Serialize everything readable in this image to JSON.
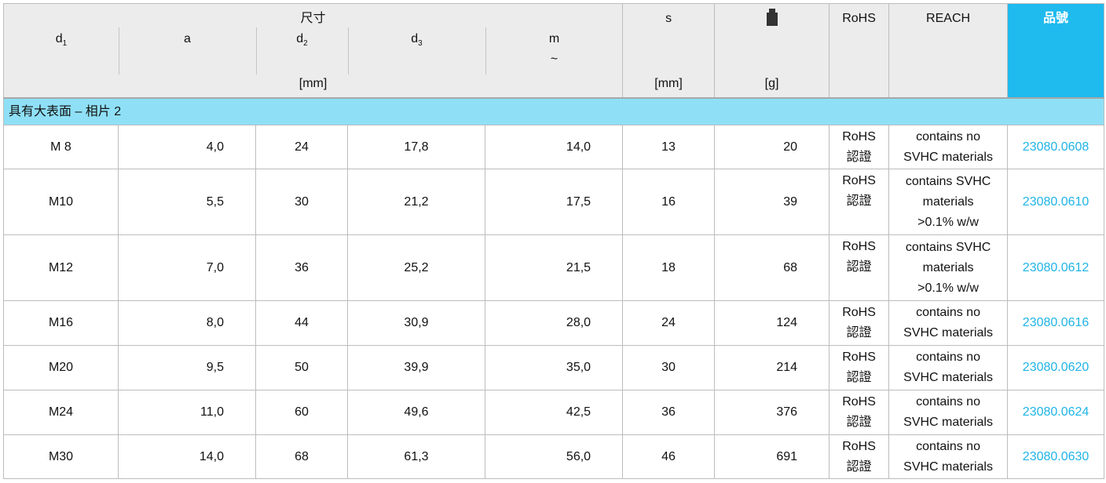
{
  "header": {
    "dimensions_label": "尺寸",
    "dimensions_unit": "[mm]",
    "d1": "d",
    "d1_sub": "1",
    "a": "a",
    "d2": "d",
    "d2_sub": "2",
    "d3": "d",
    "d3_sub": "3",
    "m": "m",
    "m_approx": "~",
    "s": "s",
    "s_unit": "[mm]",
    "weight_icon": "weight-icon",
    "weight_unit": "[g]",
    "rohs": "RoHS",
    "reach": "REACH",
    "part_no": "品號"
  },
  "colors": {
    "header_bg": "#ececec",
    "group_bg": "#8fe0f6",
    "part_no_header": "#1fbaee",
    "part_no_link": "#1fb4e6"
  },
  "group": "具有大表面 – 相片 2",
  "rows": [
    {
      "d1": "M 8",
      "a": "4,0",
      "d2": "24",
      "d3": "17,8",
      "m": "14,0",
      "s": "13",
      "g": "20",
      "rohs1": "RoHS",
      "rohs2": "認證",
      "reach": [
        "contains no",
        "SVHC materials"
      ],
      "part": "23080.0608"
    },
    {
      "d1": "M10",
      "a": "5,5",
      "d2": "30",
      "d3": "21,2",
      "m": "17,5",
      "s": "16",
      "g": "39",
      "rohs1": "RoHS",
      "rohs2": "認證",
      "reach": [
        "contains SVHC",
        "materials",
        ">0.1% w/w"
      ],
      "part": "23080.0610"
    },
    {
      "d1": "M12",
      "a": "7,0",
      "d2": "36",
      "d3": "25,2",
      "m": "21,5",
      "s": "18",
      "g": "68",
      "rohs1": "RoHS",
      "rohs2": "認證",
      "reach": [
        "contains SVHC",
        "materials",
        ">0.1% w/w"
      ],
      "part": "23080.0612"
    },
    {
      "d1": "M16",
      "a": "8,0",
      "d2": "44",
      "d3": "30,9",
      "m": "28,0",
      "s": "24",
      "g": "124",
      "rohs1": "RoHS",
      "rohs2": "認證",
      "reach": [
        "contains no",
        "SVHC materials"
      ],
      "part": "23080.0616"
    },
    {
      "d1": "M20",
      "a": "9,5",
      "d2": "50",
      "d3": "39,9",
      "m": "35,0",
      "s": "30",
      "g": "214",
      "rohs1": "RoHS",
      "rohs2": "認證",
      "reach": [
        "contains no",
        "SVHC materials"
      ],
      "part": "23080.0620"
    },
    {
      "d1": "M24",
      "a": "11,0",
      "d2": "60",
      "d3": "49,6",
      "m": "42,5",
      "s": "36",
      "g": "376",
      "rohs1": "RoHS",
      "rohs2": "認證",
      "reach": [
        "contains no",
        "SVHC materials"
      ],
      "part": "23080.0624"
    },
    {
      "d1": "M30",
      "a": "14,0",
      "d2": "68",
      "d3": "61,3",
      "m": "56,0",
      "s": "46",
      "g": "691",
      "rohs1": "RoHS",
      "rohs2": "認證",
      "reach": [
        "contains no",
        "SVHC materials"
      ],
      "part": "23080.0630"
    }
  ]
}
